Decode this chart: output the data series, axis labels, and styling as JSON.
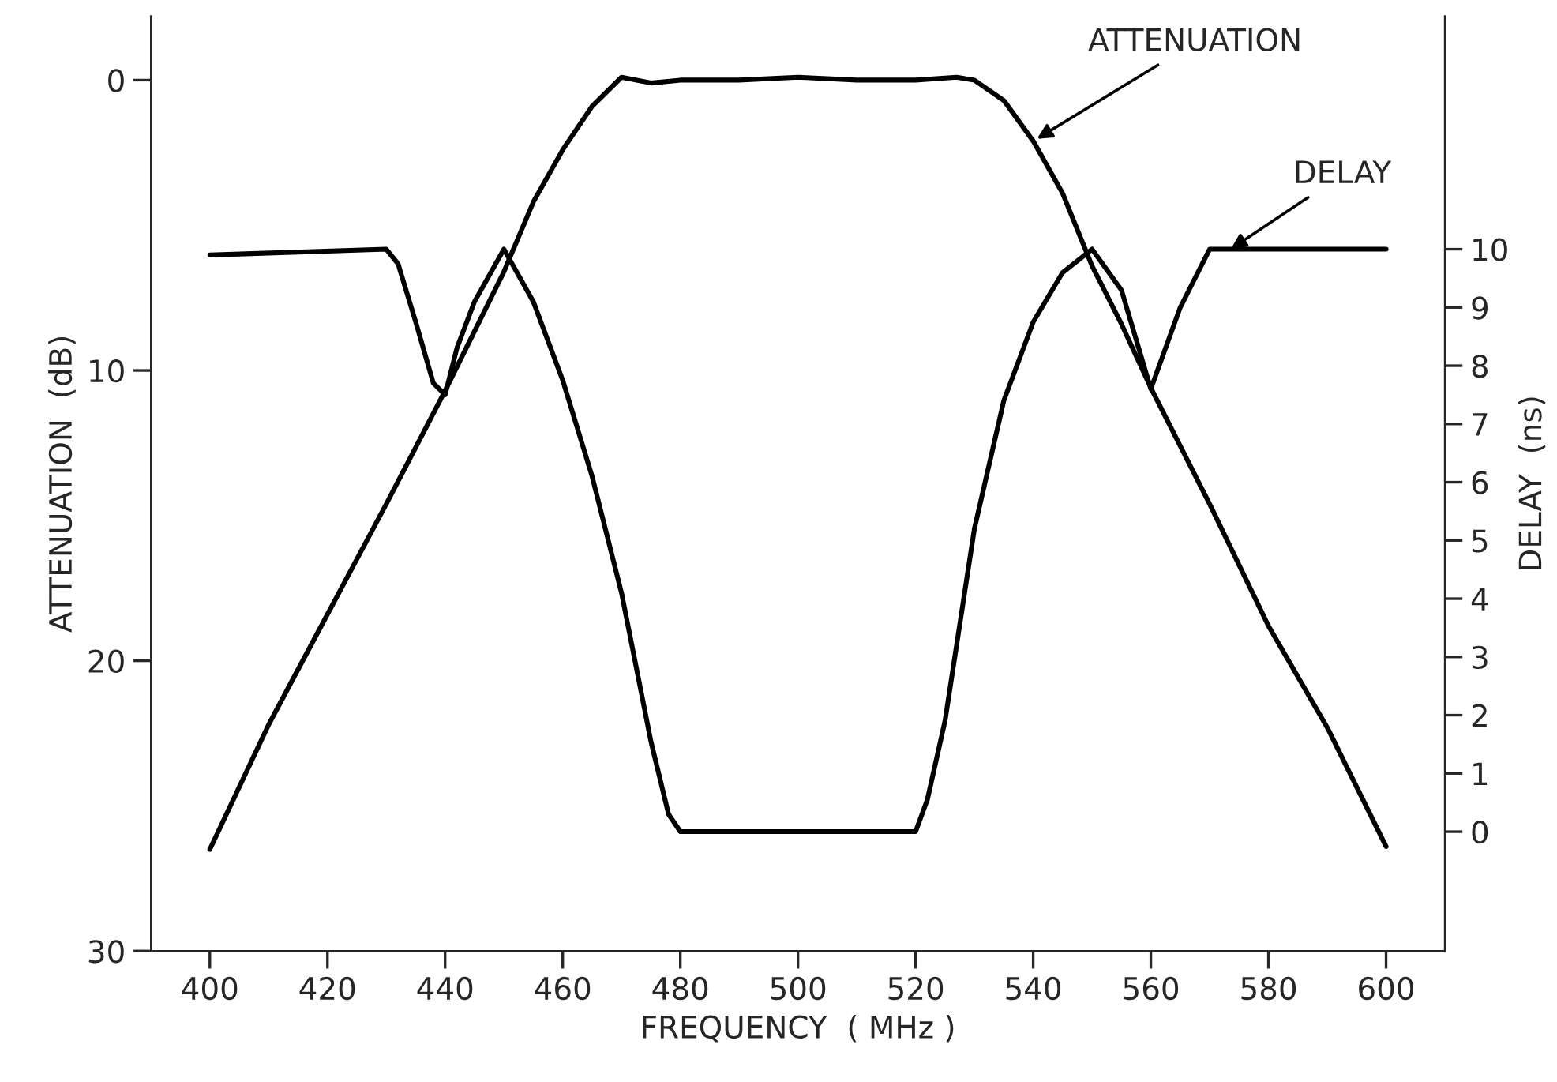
{
  "chart_data": {
    "type": "line",
    "xlabel": "FREQUENCY  ( MHz )",
    "ylabel": "ATTENUATION  (dB)",
    "y2label": "DELAY  (ns)",
    "series": [
      {
        "color": "#000000",
        "x": [
          400,
          410,
          420,
          430,
          440,
          450,
          455,
          460,
          465,
          470,
          475,
          480,
          490,
          500,
          510,
          520,
          527,
          530,
          535,
          540,
          545,
          550,
          555,
          560,
          570,
          580,
          590,
          600
        ],
        "values": [
          26.5,
          22.2,
          18.4,
          14.6,
          10.7,
          6.6,
          4.2,
          2.4,
          0.9,
          -0.1,
          0.1,
          0,
          0,
          -0.1,
          0,
          0,
          -0.1,
          0,
          0.7,
          2.1,
          3.9,
          6.4,
          8.4,
          10.6,
          14.6,
          18.8,
          22.3,
          26.4
        ]
      },
      {
        "color": "#000000",
        "axis": "y2",
        "x": [
          400,
          430,
          432,
          435,
          438,
          440,
          442,
          445,
          450,
          455,
          460,
          465,
          470,
          475,
          478,
          480,
          520,
          522,
          525,
          530,
          535,
          540,
          545,
          550,
          555,
          560,
          565,
          570,
          600
        ],
        "values": [
          9.9,
          10,
          9.75,
          8.75,
          7.7,
          7.5,
          8.3,
          9.1,
          10,
          9.1,
          7.75,
          6.1,
          4.1,
          1.55,
          0.3,
          0,
          0,
          0.55,
          1.9,
          5.2,
          7.4,
          8.75,
          9.6,
          10,
          9.3,
          7.6,
          9,
          10,
          10
        ]
      }
    ],
    "annotations": [
      {
        "text": "ATTENUATION",
        "x": 540,
        "y": 2.1
      },
      {
        "text": "DELAY",
        "x": 573,
        "y": 5.9
      }
    ],
    "xlim": [
      390,
      610
    ],
    "xticks": [
      400,
      420,
      440,
      460,
      480,
      500,
      520,
      540,
      560,
      580,
      600
    ],
    "ylim": [
      30,
      -2.2
    ],
    "yticks": [
      0,
      10,
      20,
      30
    ],
    "y2lim": [
      -2.05,
      14.0
    ],
    "y2ticks": [
      0,
      1,
      2,
      3,
      4,
      5,
      6,
      7,
      8,
      9,
      10
    ],
    "grid": false,
    "legend": false,
    "marker": "none",
    "line_style": "solid"
  }
}
